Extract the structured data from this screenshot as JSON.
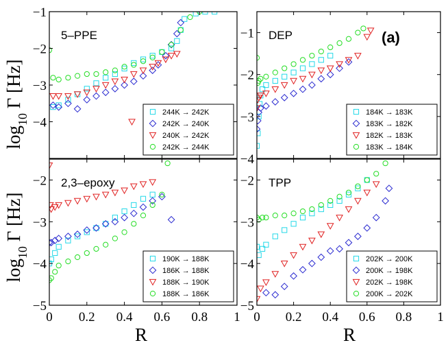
{
  "figure": {
    "tag": "(a)",
    "xlabel": "R",
    "ylabel_main": "log",
    "ylabel_sub": "10",
    "ylabel_rest": " Γ [Hz]"
  },
  "chart_data": [
    {
      "type": "scatter",
      "title": "5–PPE",
      "xlim": [
        0,
        1
      ],
      "ylim": [
        -5,
        -1
      ],
      "xticks": [
        0,
        0.2,
        0.4,
        0.6,
        0.8,
        1
      ],
      "xtick_labels": [
        "0",
        "0.2",
        "0.4",
        "0.6",
        "0.8",
        "1"
      ],
      "yticks": [
        -4,
        -3,
        -2,
        -1
      ],
      "ytick_labels": [
        "−4",
        "−3",
        "−2",
        "−1"
      ],
      "legend": "bottom-right",
      "series": [
        {
          "name": "244K → 242K",
          "marker": "square",
          "color": "#22d8e8",
          "x": [
            0.02,
            0.05,
            0.1,
            0.15,
            0.2,
            0.25,
            0.3,
            0.35,
            0.4,
            0.45,
            0.5,
            0.55,
            0.6,
            0.65,
            0.68,
            0.7,
            0.72,
            0.78,
            0.83,
            0.88
          ],
          "y": [
            -3.6,
            -3.55,
            -3.4,
            -3.25,
            -3.1,
            -2.95,
            -2.8,
            -2.7,
            -2.55,
            -2.4,
            -2.3,
            -2.2,
            -2.1,
            -2.0,
            -1.8,
            -1.5,
            -1.2,
            -1.05,
            -1.0,
            -1.0
          ]
        },
        {
          "name": "242K → 240K",
          "marker": "diamond",
          "color": "#2a2ad0",
          "x": [
            0.02,
            0.05,
            0.1,
            0.15,
            0.2,
            0.25,
            0.3,
            0.35,
            0.4,
            0.45,
            0.5,
            0.55,
            0.58,
            0.62,
            0.65,
            0.68,
            0.7
          ],
          "y": [
            -3.55,
            -3.6,
            -3.5,
            -3.65,
            -3.4,
            -3.3,
            -3.2,
            -3.1,
            -3.0,
            -2.9,
            -2.75,
            -2.6,
            -2.45,
            -2.2,
            -1.9,
            -1.6,
            -1.3
          ]
        },
        {
          "name": "240K → 242K",
          "marker": "triangle-down",
          "color": "#e02020",
          "x": [
            0.02,
            0.05,
            0.1,
            0.15,
            0.2,
            0.25,
            0.3,
            0.35,
            0.4,
            0.45,
            0.5,
            0.55,
            0.58,
            0.62,
            0.65,
            0.68,
            0.44
          ],
          "y": [
            -3.3,
            -3.3,
            -3.3,
            -3.25,
            -3.2,
            -3.1,
            -3.0,
            -2.9,
            -2.85,
            -2.7,
            -2.6,
            -2.5,
            -2.4,
            -2.3,
            -2.2,
            -2.15,
            -4.0
          ]
        },
        {
          "name": "242K → 244K",
          "marker": "circle",
          "color": "#22dd22",
          "x": [
            0.0,
            0.02,
            0.05,
            0.1,
            0.15,
            0.2,
            0.25,
            0.3,
            0.35,
            0.4,
            0.45,
            0.5,
            0.55,
            0.6,
            0.65,
            0.7,
            0.75,
            0.8
          ],
          "y": [
            -2.05,
            -2.8,
            -2.85,
            -2.8,
            -2.75,
            -2.7,
            -2.7,
            -2.65,
            -2.6,
            -2.5,
            -2.45,
            -2.35,
            -2.25,
            -2.1,
            -1.9,
            -1.5,
            -1.15,
            -1.0
          ]
        }
      ]
    },
    {
      "type": "scatter",
      "title": "DEP",
      "xlim": [
        0,
        1
      ],
      "ylim": [
        -4,
        -0.5
      ],
      "xticks": [
        0,
        0.2,
        0.4,
        0.6,
        0.8,
        1
      ],
      "xtick_labels": [
        "0",
        "0.2",
        "0.4",
        "0.6",
        "0.8",
        "1"
      ],
      "yticks": [
        -4,
        -3,
        -2,
        -1
      ],
      "ytick_labels": [
        "−4",
        "−3",
        "−2",
        "−1"
      ],
      "legend": "bottom-right",
      "series": [
        {
          "name": "184K → 183K",
          "marker": "square",
          "color": "#22d8e8",
          "x": [
            0.0,
            0.005,
            0.01,
            0.015,
            0.02,
            0.03,
            0.05,
            0.1,
            0.15,
            0.2,
            0.25,
            0.3,
            0.35,
            0.4
          ],
          "y": [
            -3.7,
            -3.4,
            -3.0,
            -2.7,
            -2.5,
            -2.35,
            -2.25,
            -2.15,
            -2.05,
            -1.95,
            -1.85,
            -1.75,
            -1.65,
            -1.55
          ]
        },
        {
          "name": "183K → 182K",
          "marker": "diamond",
          "color": "#2a2ad0",
          "x": [
            0.0,
            0.005,
            0.01,
            0.02,
            0.05,
            0.1,
            0.15,
            0.2,
            0.25,
            0.3,
            0.35,
            0.4,
            0.45,
            0.5
          ],
          "y": [
            -3.3,
            -3.1,
            -2.9,
            -2.8,
            -2.75,
            -2.65,
            -2.55,
            -2.45,
            -2.35,
            -2.25,
            -2.1,
            -2.0,
            -1.85,
            -1.7
          ]
        },
        {
          "name": "182K → 183K",
          "marker": "triangle-down",
          "color": "#e02020",
          "x": [
            0.0,
            0.005,
            0.01,
            0.02,
            0.05,
            0.1,
            0.15,
            0.2,
            0.25,
            0.3,
            0.35,
            0.4,
            0.45,
            0.5,
            0.55,
            0.6,
            0.62
          ],
          "y": [
            -2.8,
            -2.6,
            -2.55,
            -2.5,
            -2.45,
            -2.35,
            -2.25,
            -2.15,
            -2.1,
            -2.0,
            -1.9,
            -1.85,
            -1.75,
            -1.65,
            -1.55,
            -1.1,
            -0.95
          ]
        },
        {
          "name": "183K → 184K",
          "marker": "circle",
          "color": "#22dd22",
          "x": [
            0.0,
            0.005,
            0.01,
            0.02,
            0.05,
            0.1,
            0.15,
            0.2,
            0.25,
            0.3,
            0.35,
            0.4,
            0.45,
            0.5,
            0.55,
            0.58
          ],
          "y": [
            -1.6,
            -2.2,
            -2.15,
            -2.1,
            -2.05,
            -1.95,
            -1.85,
            -1.75,
            -1.65,
            -1.55,
            -1.45,
            -1.35,
            -1.25,
            -1.15,
            -1.0,
            -0.9
          ]
        }
      ]
    },
    {
      "type": "scatter",
      "title": "2,3–epoxy",
      "xlim": [
        0,
        1
      ],
      "ylim": [
        -5,
        -1.5
      ],
      "xticks": [
        0,
        0.2,
        0.4,
        0.6,
        0.8,
        1
      ],
      "xtick_labels": [
        "0",
        "0.2",
        "0.4",
        "0.6",
        "0.8",
        "1"
      ],
      "yticks": [
        -5,
        -4,
        -3,
        -2
      ],
      "ytick_labels": [
        "−5",
        "−4",
        "−3",
        "−2"
      ],
      "legend": "bottom-right",
      "series": [
        {
          "name": "190K → 188K",
          "marker": "square",
          "color": "#22d8e8",
          "x": [
            0.0,
            0.01,
            0.03,
            0.05,
            0.1,
            0.15,
            0.2,
            0.25,
            0.3,
            0.35,
            0.4,
            0.45,
            0.5,
            0.55
          ],
          "y": [
            -4.0,
            -3.9,
            -3.75,
            -3.6,
            -3.45,
            -3.35,
            -3.25,
            -3.15,
            -3.05,
            -2.9,
            -2.75,
            -2.6,
            -2.45,
            -2.35
          ]
        },
        {
          "name": "186K → 188K",
          "marker": "diamond",
          "color": "#2a2ad0",
          "x": [
            0.0,
            0.01,
            0.03,
            0.05,
            0.1,
            0.15,
            0.2,
            0.25,
            0.3,
            0.35,
            0.4,
            0.45,
            0.5,
            0.55,
            0.6,
            0.65
          ],
          "y": [
            -3.5,
            -3.5,
            -3.45,
            -3.4,
            -3.35,
            -3.3,
            -3.2,
            -3.15,
            -3.05,
            -3.0,
            -2.9,
            -2.8,
            -2.65,
            -2.5,
            -2.4,
            -2.95
          ]
        },
        {
          "name": "188K → 190K",
          "marker": "triangle-down",
          "color": "#e02020",
          "x": [
            0.0,
            0.005,
            0.01,
            0.03,
            0.05,
            0.1,
            0.15,
            0.2,
            0.25,
            0.3,
            0.35,
            0.4,
            0.45,
            0.5,
            0.55
          ],
          "y": [
            -1.65,
            -2.6,
            -2.7,
            -2.65,
            -2.6,
            -2.55,
            -2.5,
            -2.45,
            -2.4,
            -2.35,
            -2.3,
            -2.25,
            -2.15,
            -2.1,
            -2.05
          ]
        },
        {
          "name": "188K → 186K",
          "marker": "circle",
          "color": "#22dd22",
          "x": [
            0.0,
            0.01,
            0.03,
            0.05,
            0.1,
            0.15,
            0.2,
            0.25,
            0.3,
            0.35,
            0.4,
            0.45,
            0.5,
            0.55,
            0.6,
            0.63
          ],
          "y": [
            -4.4,
            -4.35,
            -4.2,
            -4.05,
            -3.95,
            -3.85,
            -3.75,
            -3.65,
            -3.55,
            -3.4,
            -3.25,
            -3.05,
            -2.85,
            -2.6,
            -2.35,
            -1.6
          ]
        }
      ]
    },
    {
      "type": "scatter",
      "title": "TPP",
      "xlim": [
        0,
        1
      ],
      "ylim": [
        -5,
        -1.5
      ],
      "xticks": [
        0,
        0.2,
        0.4,
        0.6,
        0.8,
        1
      ],
      "xtick_labels": [
        "0",
        "0.2",
        "0.4",
        "0.6",
        "0.8",
        "1"
      ],
      "yticks": [
        -5,
        -4,
        -3,
        -2
      ],
      "ytick_labels": [
        "−5",
        "−4",
        "−3",
        "−2"
      ],
      "legend": "bottom-right",
      "series": [
        {
          "name": "202K → 200K",
          "marker": "square",
          "color": "#22d8e8",
          "x": [
            0.0,
            0.01,
            0.03,
            0.05,
            0.1,
            0.15,
            0.2,
            0.25,
            0.3,
            0.35,
            0.4,
            0.45,
            0.5,
            0.55,
            0.6
          ],
          "y": [
            -3.6,
            -3.8,
            -3.65,
            -3.55,
            -3.35,
            -3.2,
            -3.05,
            -2.9,
            -2.8,
            -2.7,
            -2.6,
            -2.5,
            -2.35,
            -2.2,
            -2.0
          ]
        },
        {
          "name": "200K → 198K",
          "marker": "diamond",
          "color": "#2a2ad0",
          "x": [
            0.05,
            0.1,
            0.15,
            0.2,
            0.25,
            0.3,
            0.35,
            0.4,
            0.45,
            0.5,
            0.55,
            0.6,
            0.65,
            0.7,
            0.72
          ],
          "y": [
            -4.7,
            -4.75,
            -4.55,
            -4.3,
            -4.15,
            -4.0,
            -3.85,
            -3.7,
            -3.65,
            -3.5,
            -3.35,
            -3.15,
            -2.9,
            -2.5,
            -2.2
          ]
        },
        {
          "name": "202K → 198K",
          "marker": "triangle-down",
          "color": "#e02020",
          "x": [
            0.0,
            0.02,
            0.05,
            0.1,
            0.15,
            0.2,
            0.25,
            0.3,
            0.35,
            0.4,
            0.45,
            0.5,
            0.55,
            0.6,
            0.65
          ],
          "y": [
            -4.85,
            -4.6,
            -4.45,
            -4.25,
            -4.0,
            -3.8,
            -3.6,
            -3.45,
            -3.3,
            -3.1,
            -2.9,
            -2.7,
            -2.5,
            -2.3,
            -2.1
          ]
        },
        {
          "name": "200K → 202K",
          "marker": "circle",
          "color": "#22dd22",
          "x": [
            0.0,
            0.01,
            0.03,
            0.05,
            0.1,
            0.15,
            0.2,
            0.25,
            0.3,
            0.35,
            0.4,
            0.45,
            0.5,
            0.55,
            0.6,
            0.65,
            0.7
          ],
          "y": [
            -2.9,
            -2.95,
            -2.9,
            -2.9,
            -2.85,
            -2.85,
            -2.8,
            -2.75,
            -2.7,
            -2.6,
            -2.5,
            -2.4,
            -2.3,
            -2.15,
            -2.0,
            -1.85,
            -1.6
          ]
        }
      ]
    }
  ]
}
